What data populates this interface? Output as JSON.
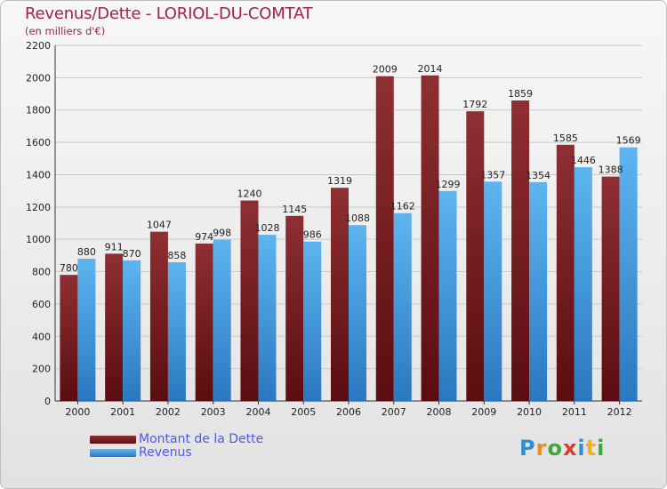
{
  "title": "Revenus/Dette - LORIOL-DU-COMTAT",
  "subtitle": "(en milliers d'€)",
  "brand": {
    "letters": [
      {
        "ch": "P",
        "color": "#2e8fd6"
      },
      {
        "ch": "r",
        "color": "#f08a1c"
      },
      {
        "ch": "o",
        "color": "#3aa935"
      },
      {
        "ch": "x",
        "color": "#d93a2b"
      },
      {
        "ch": "i",
        "color": "#2e8fd6"
      },
      {
        "ch": "t",
        "color": "#f0b21c"
      },
      {
        "ch": "i",
        "color": "#3aa935"
      }
    ]
  },
  "chart_data": {
    "type": "bar",
    "title": "Revenus/Dette - LORIOL-DU-COMTAT",
    "subtitle": "(en milliers d'€)",
    "categories": [
      "2000",
      "2001",
      "2002",
      "2003",
      "2004",
      "2005",
      "2006",
      "2007",
      "2008",
      "2009",
      "2010",
      "2011",
      "2012"
    ],
    "series": [
      {
        "name": "Montant de la Dette",
        "color": "#7a1e22",
        "values": [
          780,
          911,
          1047,
          974,
          1240,
          1145,
          1319,
          2009,
          2014,
          1792,
          1859,
          1585,
          1388
        ]
      },
      {
        "name": "Revenus",
        "color": "#4aa3e6",
        "values": [
          880,
          870,
          858,
          998,
          1028,
          986,
          1088,
          1162,
          1299,
          1357,
          1354,
          1446,
          1569
        ]
      }
    ],
    "ylim": [
      0,
      2200
    ],
    "yticks": [
      0,
      200,
      400,
      600,
      800,
      1000,
      1200,
      1400,
      1600,
      1800,
      2000,
      2200
    ],
    "grid": true,
    "legend_position": "bottom-left"
  }
}
